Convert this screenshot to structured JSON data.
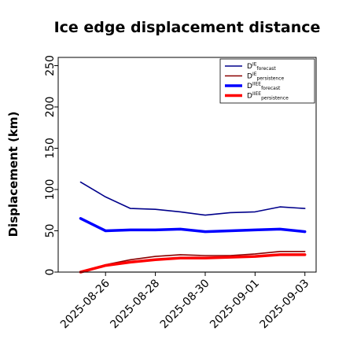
{
  "chart_data": {
    "type": "line",
    "title": "Ice edge displacement distance",
    "ylabel": "Displacement (km)",
    "xlabel": "",
    "ylim": [
      0,
      260
    ],
    "y_ticks": [
      0,
      50,
      100,
      150,
      200,
      250
    ],
    "x": [
      "2025-08-25",
      "2025-08-26",
      "2025-08-27",
      "2025-08-28",
      "2025-08-29",
      "2025-08-30",
      "2025-08-31",
      "2025-09-01",
      "2025-09-02",
      "2025-09-03"
    ],
    "x_tick_labels": [
      "2025-08-26",
      "2025-08-28",
      "2025-08-30",
      "2025-09-01",
      "2025-09-03"
    ],
    "highlighted_tick": "2025-08-26",
    "highlight_color": "#228B22",
    "baseline": 0,
    "legend_position": "top-right",
    "series": [
      {
        "name": "D^IE_forecast",
        "label_base": "D",
        "label_sup": "IE",
        "label_sub": "forecast",
        "color": "#00008B",
        "width": 1.6,
        "values": [
          109,
          91,
          77,
          76,
          73,
          69,
          72,
          73,
          79,
          77
        ]
      },
      {
        "name": "D^IE_persistence",
        "label_base": "D",
        "label_sup": "IE",
        "label_sub": "persistence",
        "color": "#8B0000",
        "width": 1.6,
        "values": [
          0,
          9,
          15,
          19,
          21,
          20,
          20,
          22,
          25,
          25
        ]
      },
      {
        "name": "D^IIEE_forecast",
        "label_base": "D",
        "label_sup": "IIEE",
        "label_sub": "forecast",
        "color": "#0000FF",
        "width": 3.5,
        "values": [
          65,
          50,
          51,
          51,
          52,
          49,
          50,
          51,
          52,
          49
        ]
      },
      {
        "name": "D^IIEE_persistence",
        "label_base": "D",
        "label_sup": "IIEE",
        "label_sub": "persistence",
        "color": "#FF0000",
        "width": 3.5,
        "values": [
          0,
          8,
          12,
          15,
          17,
          17,
          18,
          19,
          21,
          21
        ]
      }
    ]
  }
}
